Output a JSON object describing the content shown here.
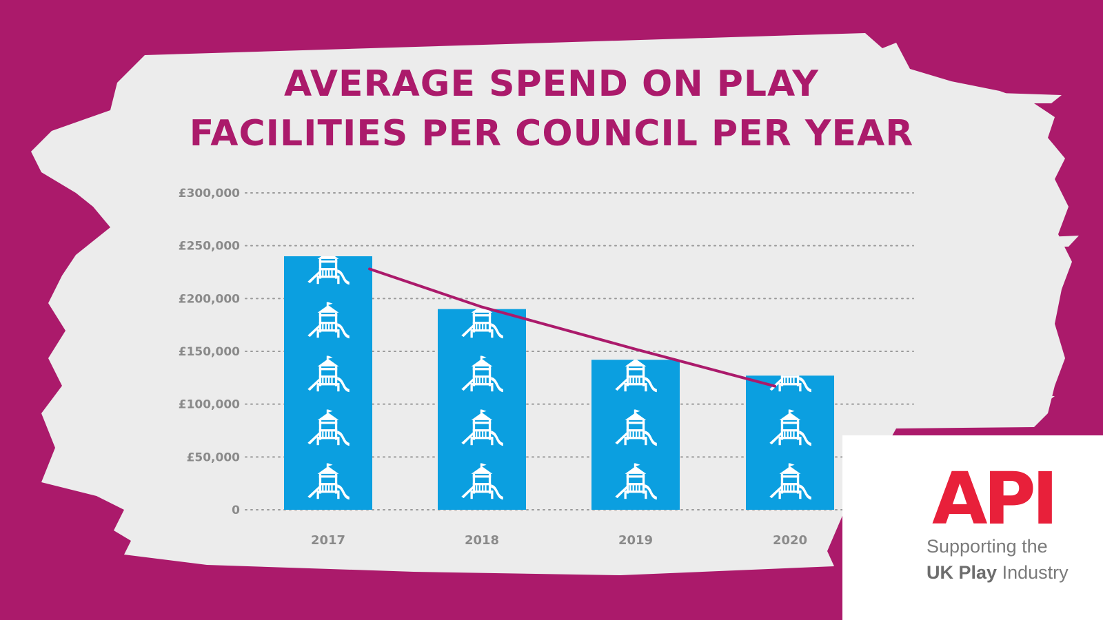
{
  "title_line1": "AVERAGE SPEND ON PLAY",
  "title_line2": "FACILITIES PER COUNCIL PER YEAR",
  "colors": {
    "background": "#ab1a6b",
    "panel": "#ececec",
    "bar": "#0b9fe0",
    "trend_line": "#ab1a6b",
    "accent_red": "#e8203a"
  },
  "chart_data": {
    "type": "bar",
    "title": "AVERAGE SPEND ON PLAY FACILITIES PER COUNCIL PER YEAR",
    "categories": [
      "2017",
      "2018",
      "2019",
      "2020"
    ],
    "values": [
      240000,
      190000,
      142000,
      127000
    ],
    "trend_line": [
      228000,
      192000,
      152000,
      117000
    ],
    "ylim": [
      0,
      300000
    ],
    "yticks": [
      0,
      50000,
      100000,
      150000,
      200000,
      250000,
      300000
    ],
    "ytick_labels": [
      "0",
      "£50,000",
      "£100,000",
      "£150,000",
      "£200,000",
      "£250,000",
      "£300,000"
    ],
    "xlabel": "",
    "ylabel": "",
    "grid": "dotted horizontal",
    "icon": "playground-icon"
  },
  "logo": {
    "word": "API",
    "tagline_line1": "Supporting the",
    "tagline_bold": "UK Play",
    "tagline_rest": "Industry"
  }
}
